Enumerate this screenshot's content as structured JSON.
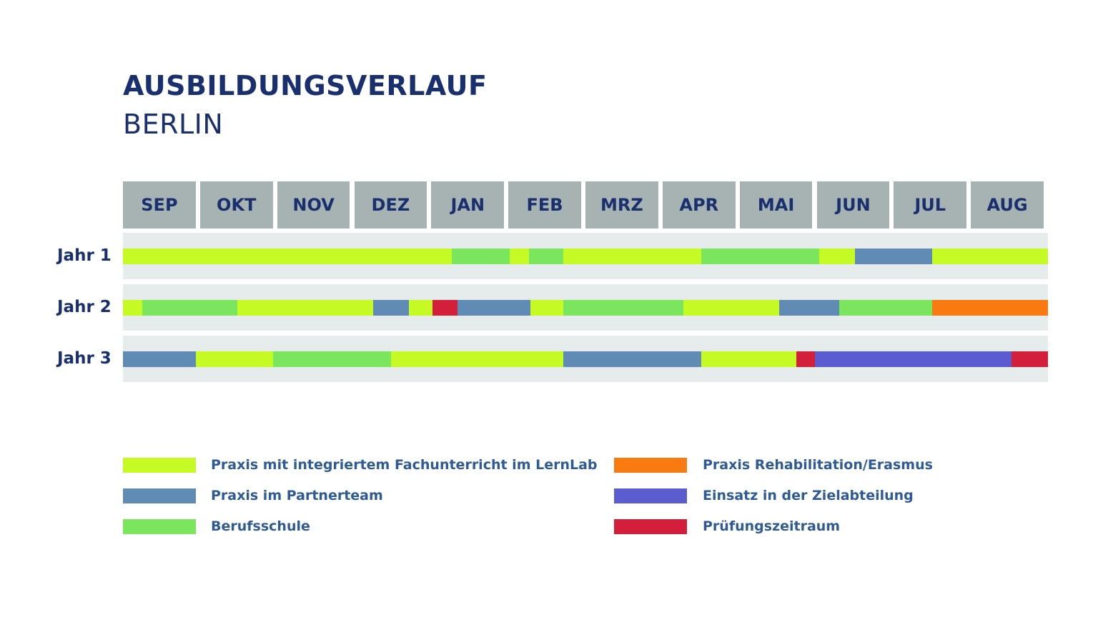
{
  "chart_data": {
    "type": "timeline",
    "title": "AUSBILDUNGSVERLAUF",
    "subtitle": "BERLIN",
    "months": [
      "SEP",
      "OKT",
      "NOV",
      "DEZ",
      "JAN",
      "FEB",
      "MRZ",
      "APR",
      "MAI",
      "JUN",
      "JUL",
      "AUG"
    ],
    "categories": {
      "lernlab": {
        "label": "Praxis mit integriertem Fachunterricht im LernLab",
        "color": "#c5fa24"
      },
      "partner": {
        "label": "Praxis im Partnerteam",
        "color": "#5f8bb4"
      },
      "schule": {
        "label": "Berufsschule",
        "color": "#7ce55e"
      },
      "reha": {
        "label": "Praxis Rehabilitation/Erasmus",
        "color": "#fa7a12"
      },
      "ziel": {
        "label": "Einsatz in der Zielabteilung",
        "color": "#5a5cd0"
      },
      "pruefung": {
        "label": "Prüfungszeitraum",
        "color": "#d31f3b"
      }
    },
    "rows": [
      {
        "label": "Jahr 1",
        "segments": [
          {
            "start": 0.0,
            "end": 4.27,
            "category": "lernlab"
          },
          {
            "start": 4.27,
            "end": 5.02,
            "category": "schule"
          },
          {
            "start": 5.02,
            "end": 5.27,
            "category": "lernlab"
          },
          {
            "start": 5.27,
            "end": 5.71,
            "category": "schule"
          },
          {
            "start": 5.71,
            "end": 7.5,
            "category": "lernlab"
          },
          {
            "start": 7.5,
            "end": 9.03,
            "category": "schule"
          },
          {
            "start": 9.03,
            "end": 9.5,
            "category": "lernlab"
          },
          {
            "start": 9.5,
            "end": 10.5,
            "category": "partner"
          },
          {
            "start": 10.5,
            "end": 12.0,
            "category": "lernlab"
          }
        ]
      },
      {
        "label": "Jahr 2",
        "segments": [
          {
            "start": 0.0,
            "end": 0.25,
            "category": "lernlab"
          },
          {
            "start": 0.25,
            "end": 1.48,
            "category": "schule"
          },
          {
            "start": 1.48,
            "end": 3.25,
            "category": "lernlab"
          },
          {
            "start": 3.25,
            "end": 3.71,
            "category": "partner"
          },
          {
            "start": 3.71,
            "end": 4.02,
            "category": "lernlab"
          },
          {
            "start": 4.02,
            "end": 4.34,
            "category": "pruefung"
          },
          {
            "start": 4.34,
            "end": 5.29,
            "category": "partner"
          },
          {
            "start": 5.29,
            "end": 5.71,
            "category": "lernlab"
          },
          {
            "start": 5.71,
            "end": 7.27,
            "category": "schule"
          },
          {
            "start": 7.27,
            "end": 8.51,
            "category": "lernlab"
          },
          {
            "start": 8.51,
            "end": 9.29,
            "category": "partner"
          },
          {
            "start": 9.29,
            "end": 10.5,
            "category": "schule"
          },
          {
            "start": 10.5,
            "end": 12.0,
            "category": "reha"
          }
        ]
      },
      {
        "label": "Jahr 3",
        "segments": [
          {
            "start": 0.0,
            "end": 0.95,
            "category": "partner"
          },
          {
            "start": 0.95,
            "end": 1.95,
            "category": "lernlab"
          },
          {
            "start": 1.95,
            "end": 3.48,
            "category": "schule"
          },
          {
            "start": 3.48,
            "end": 5.71,
            "category": "lernlab"
          },
          {
            "start": 5.71,
            "end": 7.5,
            "category": "partner"
          },
          {
            "start": 7.5,
            "end": 8.74,
            "category": "lernlab"
          },
          {
            "start": 8.74,
            "end": 8.98,
            "category": "pruefung"
          },
          {
            "start": 8.98,
            "end": 11.53,
            "category": "ziel"
          },
          {
            "start": 11.53,
            "end": 12.0,
            "category": "pruefung"
          }
        ]
      }
    ],
    "legend": [
      {
        "category": "lernlab",
        "label": "Praxis mit integriertem Fachunterricht im LernLab"
      },
      {
        "category": "partner",
        "label": "Praxis im Partnerteam"
      },
      {
        "category": "schule",
        "label": "Berufsschule"
      },
      {
        "category": "reha",
        "label": "Praxis Rehabilitation/Erasmus"
      },
      {
        "category": "ziel",
        "label": "Einsatz in der Zielabteilung"
      },
      {
        "category": "pruefung",
        "label": "Prüfungszeitraum"
      }
    ]
  }
}
